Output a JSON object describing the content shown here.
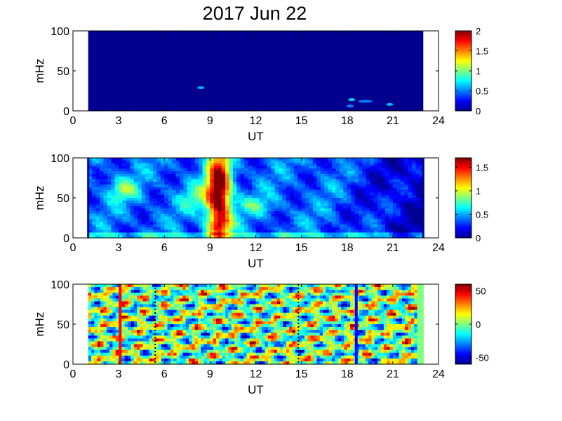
{
  "title": "2017 Jun 22",
  "colormap": [
    "#00008f",
    "#0000ff",
    "#0080ff",
    "#00ffff",
    "#80ff80",
    "#ffff00",
    "#ff8000",
    "#ff0000",
    "#800000"
  ],
  "chart_data": [
    {
      "type": "heatmap",
      "xlabel": "UT",
      "ylabel": "mHz",
      "xlim": [
        0,
        24
      ],
      "ylim": [
        0,
        100
      ],
      "xticks": [
        0,
        3,
        6,
        9,
        12,
        15,
        18,
        21,
        24
      ],
      "yticks": [
        0,
        50,
        100
      ],
      "data_x_range": [
        1,
        23
      ],
      "color_range": [
        0,
        2
      ],
      "colorbar_ticks": [
        0,
        0.5,
        1,
        1.5,
        2
      ],
      "colorbar_tick_labels": [
        "0",
        "0.5",
        "1",
        "1.5",
        "2"
      ],
      "features": [
        {
          "x": 8.4,
          "y": 29,
          "value": 0.6
        },
        {
          "x": 18.3,
          "y": 14,
          "value": 0.65
        },
        {
          "x": 19.2,
          "y": 12,
          "value": 0.5
        },
        {
          "x": 18.2,
          "y": 6,
          "value": 0.5
        },
        {
          "x": 20.8,
          "y": 8,
          "value": 0.6
        }
      ]
    },
    {
      "type": "heatmap",
      "xlabel": "UT",
      "ylabel": "mHz",
      "xlim": [
        0,
        24
      ],
      "ylim": [
        0,
        100
      ],
      "xticks": [
        0,
        3,
        6,
        9,
        12,
        15,
        18,
        21,
        24
      ],
      "yticks": [
        0,
        50,
        100
      ],
      "data_x_range": [
        1,
        23
      ],
      "color_range": [
        0,
        1.7
      ],
      "colorbar_ticks": [
        0,
        0.5,
        1,
        1.5
      ],
      "colorbar_tick_labels": [
        "0",
        "0.5",
        "1",
        "1.5"
      ],
      "features": [
        {
          "x": 9.6,
          "y": 60,
          "value": 1.7
        },
        {
          "x": 3.3,
          "y": 60,
          "value": 0.9
        },
        {
          "x": 8.2,
          "y": 50,
          "value": 0.8
        },
        {
          "x": 12.0,
          "y": 40,
          "value": 0.7
        }
      ]
    },
    {
      "type": "heatmap",
      "xlabel": "UT",
      "ylabel": "mHz",
      "xlim": [
        0,
        24
      ],
      "ylim": [
        0,
        100
      ],
      "xticks": [
        0,
        3,
        6,
        9,
        12,
        15,
        18,
        21,
        24
      ],
      "yticks": [
        0,
        50,
        100
      ],
      "data_x_range": [
        1,
        23
      ],
      "color_range": [
        -60,
        60
      ],
      "colorbar_ticks": [
        -50,
        0,
        50
      ],
      "colorbar_tick_labels": [
        "-50",
        "0",
        "50"
      ],
      "markers": [
        {
          "x": 3.1,
          "style": "solid",
          "color": "#ff0000"
        },
        {
          "x": 5.4,
          "style": "dotted",
          "color": "#000000"
        },
        {
          "x": 14.8,
          "style": "dotted",
          "color": "#000000"
        },
        {
          "x": 18.6,
          "style": "solid",
          "color": "#0000ff"
        }
      ]
    }
  ]
}
